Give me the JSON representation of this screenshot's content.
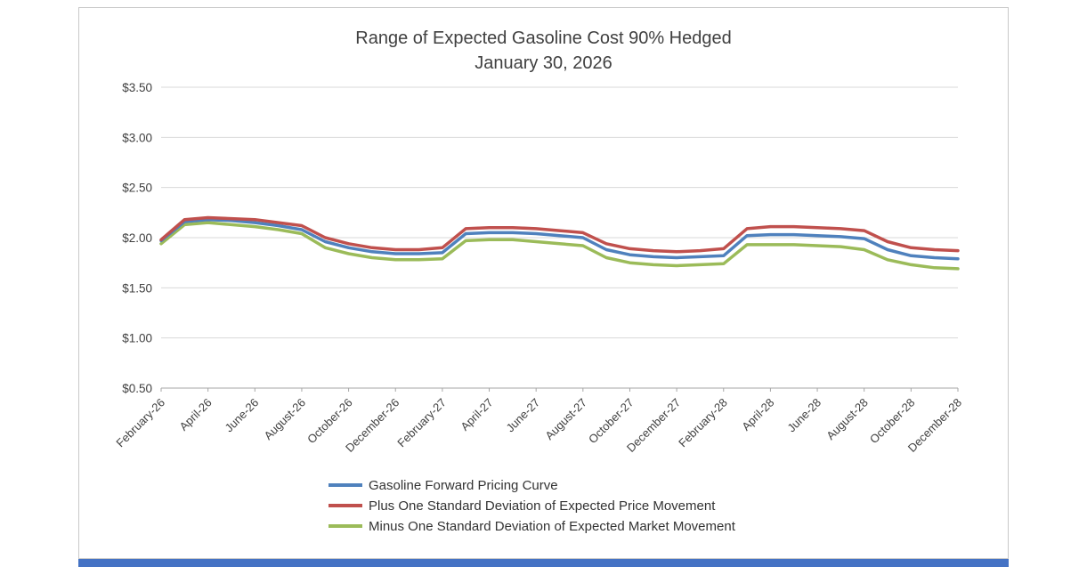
{
  "page": {
    "background_color": "#ffffff",
    "card_border_color": "#c9c9c9",
    "accent_bar_color": "#4472c4"
  },
  "chart_data": {
    "type": "line",
    "title": "Range of Expected Gasoline Cost 90% Hedged",
    "subtitle": "January 30, 2026",
    "grid": true,
    "grid_color": "#d9d9d9",
    "axis_color": "#a6a6a6",
    "text_color": "#404040",
    "legend_position": "bottom",
    "ylim": [
      0.5,
      3.5
    ],
    "yticks": [
      0.5,
      1.0,
      1.5,
      2.0,
      2.5,
      3.0,
      3.5
    ],
    "ytick_labels": [
      "$0.50",
      "$1.00",
      "$1.50",
      "$2.00",
      "$2.50",
      "$3.00",
      "$3.50"
    ],
    "x_label_every": 2,
    "x": [
      "February-26",
      "March-26",
      "April-26",
      "May-26",
      "June-26",
      "July-26",
      "August-26",
      "September-26",
      "October-26",
      "November-26",
      "December-26",
      "January-27",
      "February-27",
      "March-27",
      "April-27",
      "May-27",
      "June-27",
      "July-27",
      "August-27",
      "September-27",
      "October-27",
      "November-27",
      "December-27",
      "January-28",
      "February-28",
      "March-28",
      "April-28",
      "May-28",
      "June-28",
      "July-28",
      "August-28",
      "September-28",
      "October-28",
      "November-28",
      "December-28"
    ],
    "series": [
      {
        "name": "Gasoline Forward Pricing Curve",
        "color": "#4f81bd",
        "values": [
          1.97,
          2.16,
          2.18,
          2.17,
          2.15,
          2.12,
          2.08,
          1.96,
          1.9,
          1.86,
          1.84,
          1.84,
          1.85,
          2.04,
          2.05,
          2.05,
          2.04,
          2.02,
          2.0,
          1.88,
          1.83,
          1.81,
          1.8,
          1.81,
          1.82,
          2.02,
          2.03,
          2.03,
          2.02,
          2.01,
          1.99,
          1.88,
          1.82,
          1.8,
          1.79
        ]
      },
      {
        "name": "Plus One Standard Deviation of Expected Price Movement",
        "color": "#c0504d",
        "values": [
          1.98,
          2.18,
          2.2,
          2.19,
          2.18,
          2.15,
          2.12,
          2.0,
          1.94,
          1.9,
          1.88,
          1.88,
          1.9,
          2.09,
          2.1,
          2.1,
          2.09,
          2.07,
          2.05,
          1.94,
          1.89,
          1.87,
          1.86,
          1.87,
          1.89,
          2.09,
          2.11,
          2.11,
          2.1,
          2.09,
          2.07,
          1.96,
          1.9,
          1.88,
          1.87
        ]
      },
      {
        "name": "Minus One Standard Deviation of Expected Market Movement",
        "color": "#9bbb59",
        "values": [
          1.94,
          2.13,
          2.15,
          2.13,
          2.11,
          2.08,
          2.04,
          1.9,
          1.84,
          1.8,
          1.78,
          1.78,
          1.79,
          1.97,
          1.98,
          1.98,
          1.96,
          1.94,
          1.92,
          1.8,
          1.75,
          1.73,
          1.72,
          1.73,
          1.74,
          1.93,
          1.93,
          1.93,
          1.92,
          1.91,
          1.88,
          1.78,
          1.73,
          1.7,
          1.69
        ]
      }
    ]
  }
}
